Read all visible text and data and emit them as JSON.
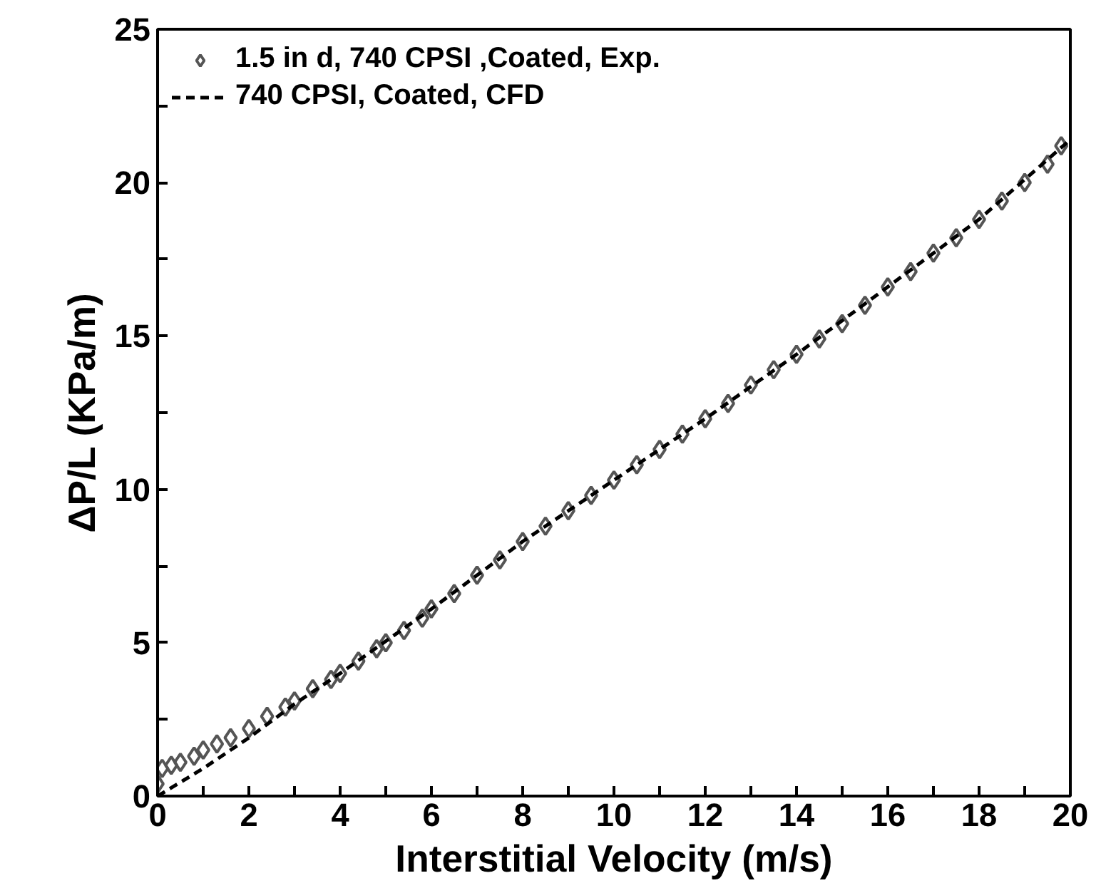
{
  "chart_data": {
    "type": "scatter",
    "xlabel": "Interstitial Velocity (m/s)",
    "ylabel": "ΔP/L (KPa/m)",
    "xlim": [
      0,
      20
    ],
    "ylim": [
      0,
      25
    ],
    "xticks": [
      0,
      {
        "value": 1,
        "label": null
      },
      2,
      {
        "value": 3,
        "label": null
      },
      4,
      {
        "value": 5,
        "label": null
      },
      6,
      {
        "value": 7,
        "label": null
      },
      8,
      {
        "value": 9,
        "label": null
      },
      10,
      {
        "value": 11,
        "label": null
      },
      12,
      {
        "value": 13,
        "label": null
      },
      14,
      {
        "value": 15,
        "label": null
      },
      16,
      {
        "value": 17,
        "label": null
      },
      18,
      {
        "value": 19,
        "label": null
      },
      20
    ],
    "yticks": [
      0,
      {
        "value": 2.5,
        "label": null
      },
      5,
      {
        "value": 7.5,
        "label": null
      },
      10,
      {
        "value": 12.5,
        "label": null
      },
      15,
      {
        "value": 17.5,
        "label": null
      },
      20,
      {
        "value": 22.5,
        "label": null
      },
      25
    ],
    "grid": false,
    "legend": "top left",
    "series": [
      {
        "name": "1.5 in d, 740 CPSI ,Coated, Exp.",
        "marker": "diamond",
        "color": "#555555",
        "x": [
          0,
          0.1,
          0.3,
          0.5,
          0.8,
          1,
          1.3,
          1.6,
          2,
          2.4,
          2.8,
          3,
          3.4,
          3.8,
          4,
          4.4,
          4.8,
          5,
          5.4,
          5.8,
          6,
          6.5,
          7,
          7.5,
          8,
          8.5,
          9,
          9.5,
          10,
          10.5,
          11,
          11.5,
          12,
          12.5,
          13,
          13.5,
          14,
          14.5,
          15,
          15.5,
          16,
          16.5,
          17,
          17.5,
          18,
          18.5,
          19,
          19.5,
          19.8
        ],
        "values": [
          0.4,
          0.9,
          1.0,
          1.1,
          1.3,
          1.5,
          1.7,
          1.9,
          2.2,
          2.6,
          2.9,
          3.1,
          3.5,
          3.8,
          4.0,
          4.4,
          4.8,
          5.0,
          5.4,
          5.8,
          6.1,
          6.6,
          7.2,
          7.7,
          8.3,
          8.8,
          9.3,
          9.8,
          10.3,
          10.8,
          11.3,
          11.8,
          12.3,
          12.8,
          13.4,
          13.9,
          14.4,
          14.9,
          15.4,
          16.0,
          16.6,
          17.1,
          17.7,
          18.2,
          18.8,
          19.4,
          20.0,
          20.6,
          21.2
        ]
      },
      {
        "name": "740 CPSI, Coated, CFD",
        "type": "line",
        "line_style": "dashed",
        "color": "#000000",
        "x": [
          0,
          1,
          2,
          3,
          4,
          6,
          8,
          10,
          12,
          14,
          16,
          18,
          20
        ],
        "values": [
          0,
          0.9,
          1.9,
          3.0,
          4.0,
          6.1,
          8.3,
          10.3,
          12.3,
          14.4,
          16.6,
          18.8,
          21.4
        ]
      }
    ]
  }
}
